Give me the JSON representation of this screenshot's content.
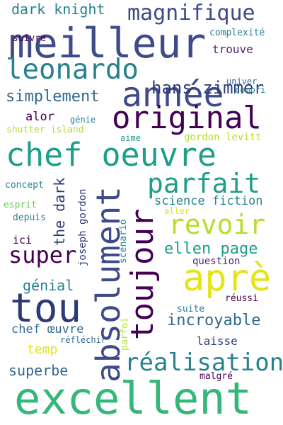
{
  "word_cloud": {
    "colors": {
      "navy": "#2d3a73",
      "indigo": "#3e4a89",
      "dark_purple": "#440154",
      "purple": "#482878",
      "blue": "#31688e",
      "teal": "#26828e",
      "teal_green": "#1f9e89",
      "green": "#35b779",
      "light_green": "#6ece58",
      "yellow_green": "#b5de2b",
      "yellow": "#e5e419"
    },
    "words": {
      "dark_knight": "dark knight",
      "magnifique": "magnifique",
      "meilleur": "meilleur",
      "suivre": "suivre",
      "complexite": "complexité",
      "leonardo": "leonardo",
      "trouve": "trouve",
      "annee": "année",
      "hans_zimmer": "hans zimmer",
      "simplement": "simplement",
      "univer": "univer",
      "compri": "compri",
      "original": "original",
      "alor": "alor",
      "genie": "génie",
      "shutter_island": "shutter island",
      "aime": "aime",
      "gordon_levitt": "gordon levitt",
      "chef_oeuvre": "chef oeuvre",
      "the_dark": "the dark",
      "parfait": "parfait",
      "concept": "concept",
      "absolument": "absolument",
      "toujour": "toujour",
      "science_fiction": "science fiction",
      "esprit": "esprit",
      "joseph_gordon": "joseph gordon",
      "scenario": "scenario",
      "aller": "aller",
      "depuis": "depuis",
      "revoir": "revoir",
      "super": "super",
      "ici": "ici",
      "ellen_page": "ellen page",
      "apre": "aprè",
      "question": "question",
      "genial": "génial",
      "tou": "tou",
      "reussi": "réussi",
      "suite": "suite",
      "parfoi": "parfoi",
      "incroyable": "incroyable",
      "chef_oeuvre_ligature": "chef œuvre",
      "reflechir": "réfléchir",
      "laisse": "laisse",
      "temp": "temp",
      "realisation": "réalisation",
      "superbe": "superbe",
      "malgre": "malgré",
      "excellent": "excellent"
    }
  }
}
